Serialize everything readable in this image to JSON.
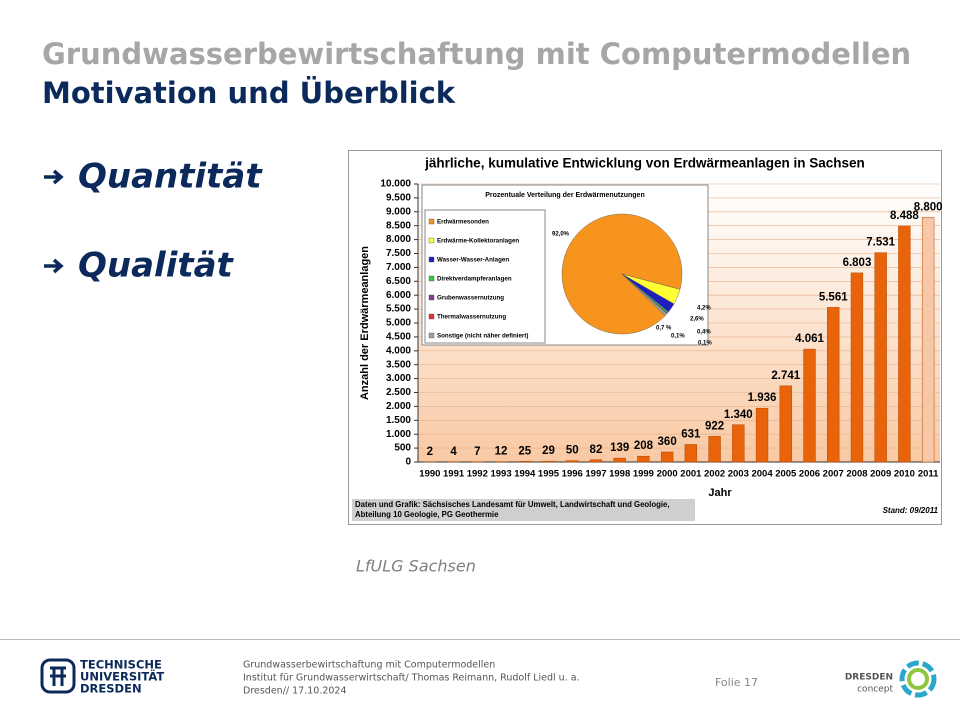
{
  "header": {
    "title": "Grundwasserbewirtschaftung mit Computermodellen",
    "subtitle": "Motivation und Überblick"
  },
  "bullets": [
    "Quantität",
    "Qualität"
  ],
  "chart_data": [
    {
      "type": "bar",
      "title": "jährliche, kumulative Entwicklung von Erdwärmeanlagen in Sachsen",
      "y_label": "Anzahl der Erdwärmeanlagen",
      "x_label": "Jahr",
      "categories": [
        "1990",
        "1991",
        "1992",
        "1993",
        "1994",
        "1995",
        "1996",
        "1997",
        "1998",
        "1999",
        "2000",
        "2001",
        "2002",
        "2003",
        "2004",
        "2005",
        "2006",
        "2007",
        "2008",
        "2009",
        "2010",
        "2011"
      ],
      "values": [
        2,
        4,
        7,
        12,
        25,
        29,
        50,
        82,
        139,
        208,
        360,
        631,
        922,
        1340,
        1936,
        2741,
        4061,
        5561,
        6803,
        7531,
        8488,
        8800
      ],
      "value_labels": [
        "2",
        "4",
        "7",
        "12",
        "25",
        "29",
        "50",
        "82",
        "139",
        "208",
        "360",
        "631",
        "922",
        "1.340",
        "1.936",
        "2.741",
        "4.061",
        "5.561",
        "6.803",
        "7.531",
        "8.488",
        "8.800"
      ],
      "colors": [
        "#e8630a",
        "#e8630a",
        "#e8630a",
        "#e8630a",
        "#e8630a",
        "#e8630a",
        "#e8630a",
        "#e8630a",
        "#e8630a",
        "#e8630a",
        "#e8630a",
        "#e8630a",
        "#e8630a",
        "#e8630a",
        "#e8630a",
        "#e8630a",
        "#e8630a",
        "#e8630a",
        "#e8630a",
        "#e8630a",
        "#e8630a",
        "#f7c8a8"
      ],
      "ylim": [
        0,
        10000
      ],
      "yticks": [
        0,
        500,
        {
          "value": 1000,
          "label": "1.000"
        },
        {
          "value": 1500,
          "label": "1.500"
        },
        {
          "value": 2000,
          "label": "2.000"
        },
        {
          "value": 2500,
          "label": "2.500"
        },
        {
          "value": 3000,
          "label": "3.000"
        },
        {
          "value": 3500,
          "label": "3.500"
        },
        {
          "value": 4000,
          "label": "4.000"
        },
        {
          "value": 4500,
          "label": "4.500"
        },
        {
          "value": 5000,
          "label": "5.000"
        },
        {
          "value": 5500,
          "label": "5.500"
        },
        {
          "value": 6000,
          "label": "6.000"
        },
        {
          "value": 6500,
          "label": "6.500"
        },
        {
          "value": 7000,
          "label": "7.000"
        },
        {
          "value": 7500,
          "label": "7.500"
        },
        {
          "value": 8000,
          "label": "8.000"
        },
        {
          "value": 8500,
          "label": "8.500"
        },
        {
          "value": 9000,
          "label": "9.000"
        },
        {
          "value": 9500,
          "label": "9.500"
        },
        {
          "value": 10000,
          "label": "10.000"
        }
      ],
      "grid": true,
      "source": "Daten und Grafik: Sächsisches Landesamt für Umwelt, Landwirtschaft und Geologie, Abteilung 10 Geologie, PG Geothermie",
      "status": "Stand: 09/2011"
    },
    {
      "type": "pie",
      "title": "Prozentuale Verteilung der Erdwärmenutzungen",
      "categories": [
        "Erdwärmesonden",
        "Erdwärme-Kollektoranlagen",
        "Wasser-Wasser-Anlagen",
        "Direktverdampferanlagen",
        "Grubenwassernutzung",
        "Thermalwassernutzung",
        "Sonstige (nicht näher definiert)"
      ],
      "values": [
        92.0,
        4.2,
        2.6,
        0.4,
        0.1,
        0.1,
        0.7
      ],
      "value_labels": [
        "92,0%",
        "4,2%",
        "2,6%",
        "0,4%",
        "0,1%",
        "0,1%",
        "0,7 %"
      ],
      "colors": [
        "#f7941d",
        "#ffff33",
        "#1f1fbf",
        "#33cc33",
        "#7a3d99",
        "#e03030",
        "#a0a0a0"
      ]
    }
  ],
  "caption": "LfULG Sachsen",
  "footer": {
    "logo": [
      "TECHNISCHE",
      "UNIVERSITÄT",
      "DRESDEN"
    ],
    "lines": [
      "Grundwasserbewirtschaftung mit Computermodellen",
      "Institut für Grundwasserwirtschaft/ Thomas Reimann, Rudolf Liedl u. a.",
      "Dresden// 17.10.2024"
    ],
    "slide": "Folie 17",
    "partner": [
      "DRESDEN",
      "concept"
    ]
  }
}
